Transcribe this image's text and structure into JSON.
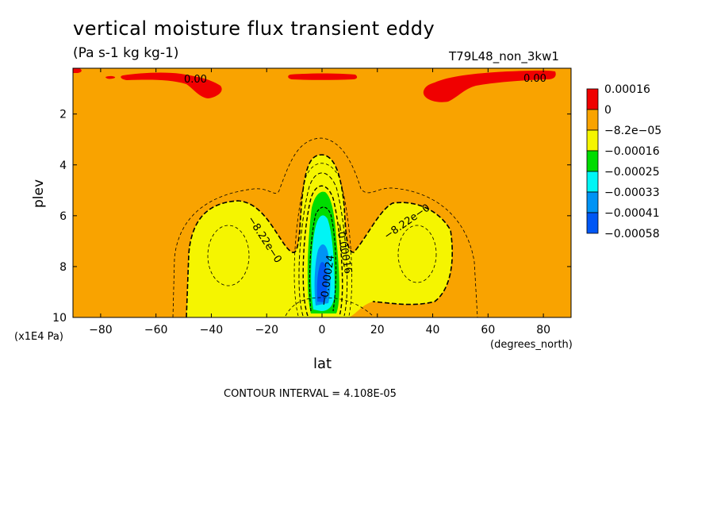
{
  "title": "vertical moisture flux transient eddy",
  "subtitle": "(Pa s-1 kg kg-1)",
  "run_label": "T79L48_non_3kw1",
  "contour_interval": "CONTOUR INTERVAL = 4.108E-05",
  "chart_data": {
    "type": "heatmap",
    "xlabel": "lat",
    "xunit": "(degrees_north)",
    "ylabel": "plev",
    "yunit": "(x1E4 Pa)",
    "xlim": [
      -90,
      90
    ],
    "ylim": [
      10,
      0.2
    ],
    "x_ticks": [
      -80,
      -60,
      -40,
      -20,
      0,
      20,
      40,
      60,
      80
    ],
    "x_tick_labels": [
      "−80",
      "−60",
      "−40",
      "−20",
      "0",
      "20",
      "40",
      "60",
      "80"
    ],
    "y_ticks": [
      2,
      4,
      6,
      8,
      10
    ],
    "y_tick_labels": [
      "2",
      "4",
      "6",
      "8",
      "10"
    ],
    "colorbar": {
      "colors": [
        "#f00000",
        "#f9a300",
        "#f5f500",
        "#00dc00",
        "#00f5f5",
        "#0093f5",
        "#0057f5"
      ],
      "labels": [
        "0.00016",
        "0",
        "−8.2e−05",
        "−0.00016",
        "−0.00025",
        "−0.00033",
        "−0.00041",
        "−0.00058"
      ]
    },
    "contour_labels": [
      "0.00",
      "0.00",
      "−8.22e−0",
      "−8.22e−0",
      "−0.00016",
      "−0.00024"
    ],
    "features": [
      {
        "label": "positive upper-level flux (NH)",
        "lat_range": [
          40,
          90
        ],
        "plev_range": [
          0.2,
          1.5
        ],
        "level": "0.00016"
      },
      {
        "label": "positive upper-level flux (SH)",
        "lat_range": [
          -55,
          -35
        ],
        "plev_range": [
          0.2,
          1.5
        ],
        "level": "0.00016"
      },
      {
        "label": "equatorial minimum",
        "lat": 0,
        "plev": 8.3,
        "level": "−0.00058"
      }
    ]
  }
}
